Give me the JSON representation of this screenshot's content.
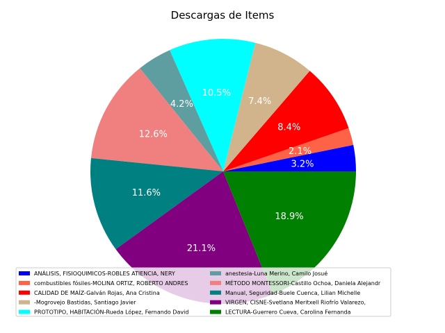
{
  "chart_data": {
    "type": "pie",
    "title": "Descargas de Items",
    "slices": [
      {
        "label": "ANÁLISIS, FISIOQUIMICOS-ROBLES ATIENCIA, NERY",
        "value": 3.2,
        "pct_label": "3.2%",
        "color": "#0000ff"
      },
      {
        "label": "combustibles fósiles-MOLINA ORTIZ, ROBERTO ANDRES",
        "value": 2.1,
        "pct_label": "2.1%",
        "color": "#ff6347"
      },
      {
        "label": "CALIDAD DE MAÍZ-Galván Rojas, Ana Cristina",
        "value": 8.4,
        "pct_label": "8.4%",
        "color": "#ff0000"
      },
      {
        "label": "-Mogrovejo Bastidas, Santiago Javier",
        "value": 7.4,
        "pct_label": "7.4%",
        "color": "#d2b48c"
      },
      {
        "label": "PROTOTIPO, HABITACIÓN-Rueda López, Fernando David",
        "value": 10.5,
        "pct_label": "10.5%",
        "color": "#00ffff"
      },
      {
        "label": "anestesia-Luna Merino, Camilo Josué",
        "value": 4.2,
        "pct_label": "4.2%",
        "color": "#5f9ea0"
      },
      {
        "label": "MÉTODO MONTESSORI-Castillo Ochoa, Daniela Alejandr",
        "value": 12.6,
        "pct_label": "12.6%",
        "color": "#f08080"
      },
      {
        "label": "Manual, Seguridad-Buele Cuenca, Lilian Michelle",
        "value": 11.6,
        "pct_label": "11.6%",
        "color": "#008080"
      },
      {
        "label": "VIRGEN, CISNE-Svetlana Meritxell Riofrío Valarezo,",
        "value": 21.1,
        "pct_label": "21.1%",
        "color": "#800080"
      },
      {
        "label": "LECTURA-Guerrero Cueva, Carolina Fernanda",
        "value": 18.9,
        "pct_label": "18.9%",
        "color": "#008000"
      }
    ],
    "start_angle_deg": 0,
    "direction": "counterclockwise",
    "legend_position": "lower-center",
    "legend_columns": 2
  }
}
